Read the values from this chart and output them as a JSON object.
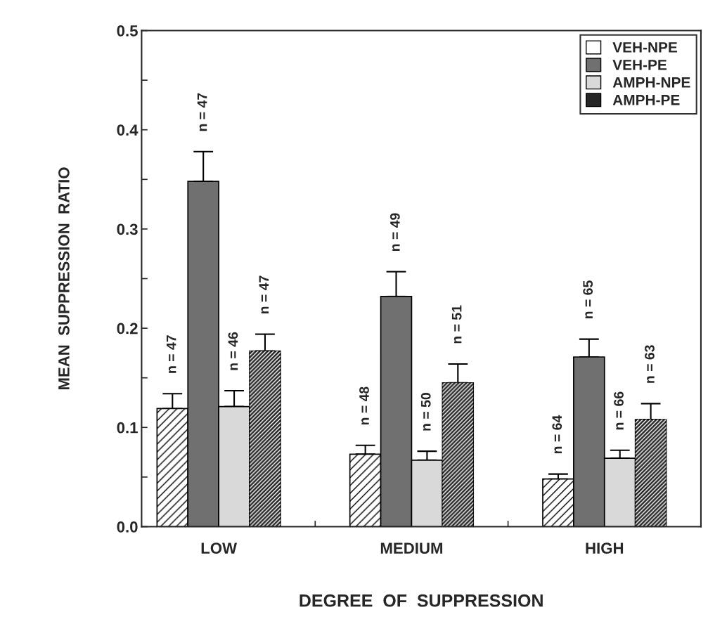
{
  "chart_data": {
    "type": "bar",
    "xlabel": "DEGREE  OF  SUPPRESSION",
    "ylabel": "MEAN  SUPPRESSION  RATIO",
    "categories": [
      "LOW",
      "MEDIUM",
      "HIGH"
    ],
    "annotations": [
      "n = 47",
      "n = 48",
      "n = 64",
      "n = 47",
      "n = 49",
      "n = 65",
      "n = 46",
      "n = 50",
      "n = 66",
      "n = 47",
      "n = 51",
      "n = 63"
    ],
    "series": [
      {
        "name": "VEH-NPE",
        "color": "#ffffff",
        "values": [
          0.119,
          0.073,
          0.048
        ],
        "errors": [
          0.015,
          0.009,
          0.005
        ]
      },
      {
        "name": "VEH-PE",
        "color": "#707070",
        "values": [
          0.348,
          0.232,
          0.171
        ],
        "errors": [
          0.03,
          0.025,
          0.018
        ]
      },
      {
        "name": "AMPH-NPE",
        "color": "#d9d9d9",
        "values": [
          0.121,
          0.067,
          0.069
        ],
        "errors": [
          0.016,
          0.009,
          0.008
        ]
      },
      {
        "name": "AMPH-PE",
        "color": "#262626",
        "values": [
          0.177,
          0.145,
          0.108
        ],
        "errors": [
          0.017,
          0.019,
          0.016
        ]
      }
    ],
    "ylim": [
      0,
      0.5
    ],
    "yticks": [
      {
        "value": 0,
        "label": "0.0"
      },
      {
        "value": 0.05,
        "label": null
      },
      {
        "value": 0.1,
        "label": "0.1"
      },
      {
        "value": 0.15,
        "label": null
      },
      {
        "value": 0.2,
        "label": "0.2"
      },
      {
        "value": 0.25,
        "label": null
      },
      {
        "value": 0.3,
        "label": "0.3"
      },
      {
        "value": 0.35,
        "label": null
      },
      {
        "value": 0.4,
        "label": "0.4"
      },
      {
        "value": 0.45,
        "label": null
      },
      {
        "value": 0.5,
        "label": "0.5"
      }
    ],
    "legend": "top right",
    "grid": false
  }
}
